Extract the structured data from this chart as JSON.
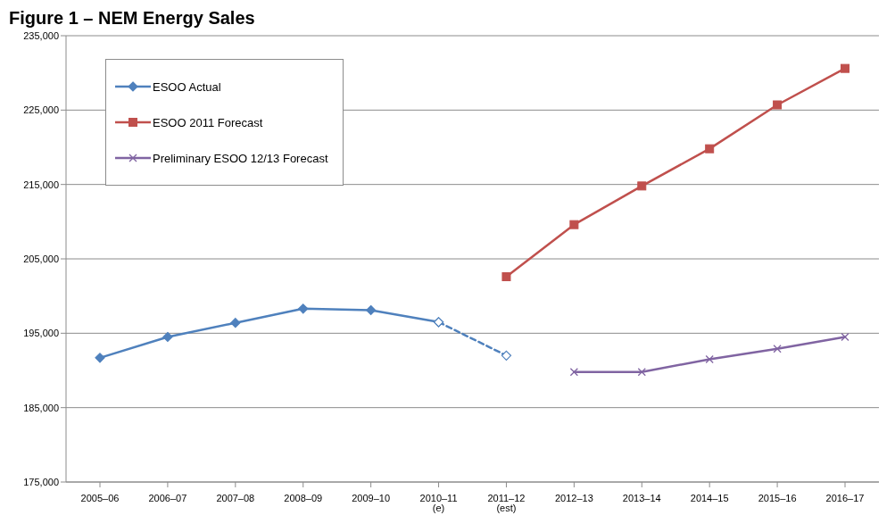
{
  "chart_data": {
    "type": "line",
    "title": "Figure 1 – NEM Energy Sales",
    "categories": [
      "2005–06",
      "2006–07",
      "2007–08",
      "2008–09",
      "2009–10",
      "2010–11 (e)",
      "2011–12 (est)",
      "2012–13",
      "2013–14",
      "2014–15",
      "2015–16",
      "2016–17"
    ],
    "series": [
      {
        "name": "ESOO Actual",
        "color": "#4f81bd",
        "marker": "diamond",
        "line_style": "solid",
        "values": [
          191700,
          194500,
          196400,
          198300,
          198100,
          196500,
          null,
          null,
          null,
          null,
          null,
          null
        ]
      },
      {
        "color": "#4f81bd",
        "marker": "diamond",
        "line_style": "dashed",
        "values": [
          null,
          null,
          null,
          null,
          null,
          196500,
          192000,
          null,
          null,
          null,
          null,
          null
        ]
      },
      {
        "name": "ESOO 2011 Forecast",
        "color": "#c0504d",
        "marker": "square",
        "line_style": "solid",
        "values": [
          null,
          null,
          null,
          null,
          null,
          null,
          202600,
          209600,
          214800,
          219800,
          225700,
          230600
        ]
      },
      {
        "name": "Preliminary ESOO 12/13 Forecast",
        "color": "#8064a2",
        "marker": "cross",
        "line_style": "solid",
        "values": [
          null,
          null,
          null,
          null,
          null,
          null,
          null,
          189800,
          189800,
          191500,
          192900,
          194500
        ]
      }
    ],
    "ylim": [
      175000,
      235000
    ],
    "yticks": [
      {
        "value": 175000,
        "label": "175,000"
      },
      {
        "value": 185000,
        "label": "185,000"
      },
      {
        "value": 195000,
        "label": "195,000"
      },
      {
        "value": 205000,
        "label": "205,000"
      },
      {
        "value": 215000,
        "label": "215,000"
      },
      {
        "value": 225000,
        "label": "225,000"
      },
      {
        "value": 235000,
        "label": "235,000"
      }
    ],
    "grid": "y",
    "legend": "top left"
  }
}
